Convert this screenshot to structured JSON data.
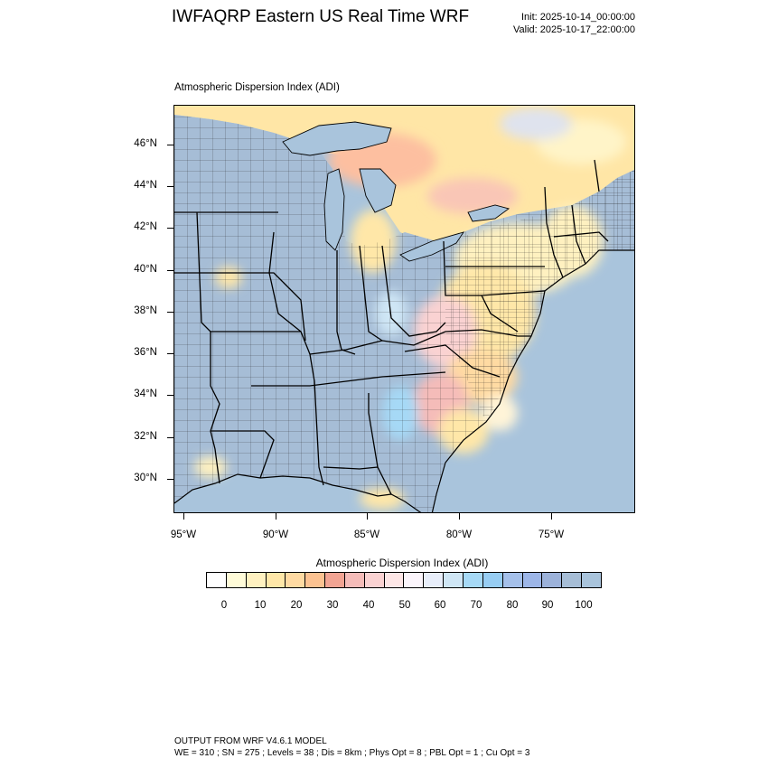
{
  "header": {
    "title": "IWFAQRP Eastern US Real Time WRF",
    "init": "Init: 2025-10-14_00:00:00",
    "valid": "Valid: 2025-10-17_22:00:00"
  },
  "plot": {
    "subtitle": "Atmospheric Dispersion Index   (ADI)"
  },
  "axes": {
    "lat_labels": [
      "46°N",
      "44°N",
      "42°N",
      "40°N",
      "38°N",
      "36°N",
      "34°N",
      "32°N",
      "30°N"
    ],
    "lon_labels": [
      "95°W",
      "90°W",
      "85°W",
      "80°W",
      "75°W"
    ]
  },
  "colorbar": {
    "title": "Atmospheric Dispersion Index  (ADI)",
    "labels": [
      "0",
      "10",
      "20",
      "30",
      "40",
      "50",
      "60",
      "70",
      "80",
      "90",
      "100"
    ],
    "colors": [
      "#ffffff",
      "#fffbd8",
      "#fff1c0",
      "#ffe7a8",
      "#ffdaa2",
      "#fcc291",
      "#f2a493",
      "#f5bcb9",
      "#fad2d2",
      "#fde6e6",
      "#fbf5fb",
      "#e8eefa",
      "#cfe6f5",
      "#a6d9f6",
      "#97cdf3",
      "#a5c0ea",
      "#9db6e8",
      "#9cb2da",
      "#a6bdd6",
      "#a9c4dc"
    ]
  },
  "footer": {
    "line1": "OUTPUT FROM WRF V4.6.1 MODEL",
    "line2": "WE = 310 ; SN = 275 ; Levels = 38 ; Dis = 8km ; Phys Opt = 8 ; PBL Opt = 1 ; Cu Opt = 3"
  }
}
